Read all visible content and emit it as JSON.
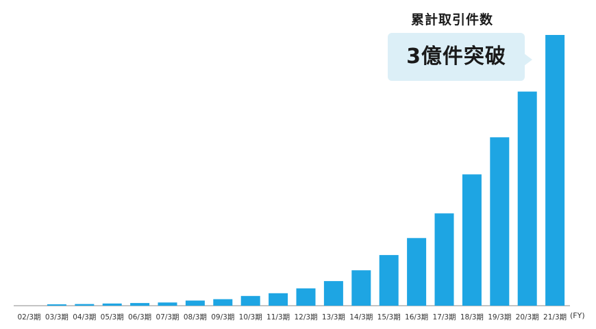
{
  "chart_data": {
    "type": "bar",
    "title": "累計取引件数",
    "callout": "3億件突破",
    "x_unit": "(FY)",
    "categories": [
      "02/3期",
      "03/3期",
      "04/3期",
      "05/3期",
      "06/3期",
      "07/3期",
      "08/3期",
      "09/3期",
      "10/3期",
      "11/3期",
      "12/3期",
      "13/3期",
      "14/3期",
      "15/3期",
      "16/3期",
      "17/3期",
      "18/3期",
      "19/3期",
      "20/3期",
      "21/3期"
    ],
    "values": [
      0,
      0.5,
      0.6,
      0.8,
      1.0,
      1.2,
      1.9,
      2.4,
      3.6,
      4.6,
      6.4,
      9.1,
      13.1,
      18.7,
      25.0,
      34.1,
      48.5,
      62.2,
      79.1,
      100
    ],
    "ylim": [
      0,
      100
    ],
    "grid": false,
    "colors": {
      "bar": "#1ea5e3",
      "axis": "#888888",
      "callout_bg": "#dceff7"
    }
  }
}
